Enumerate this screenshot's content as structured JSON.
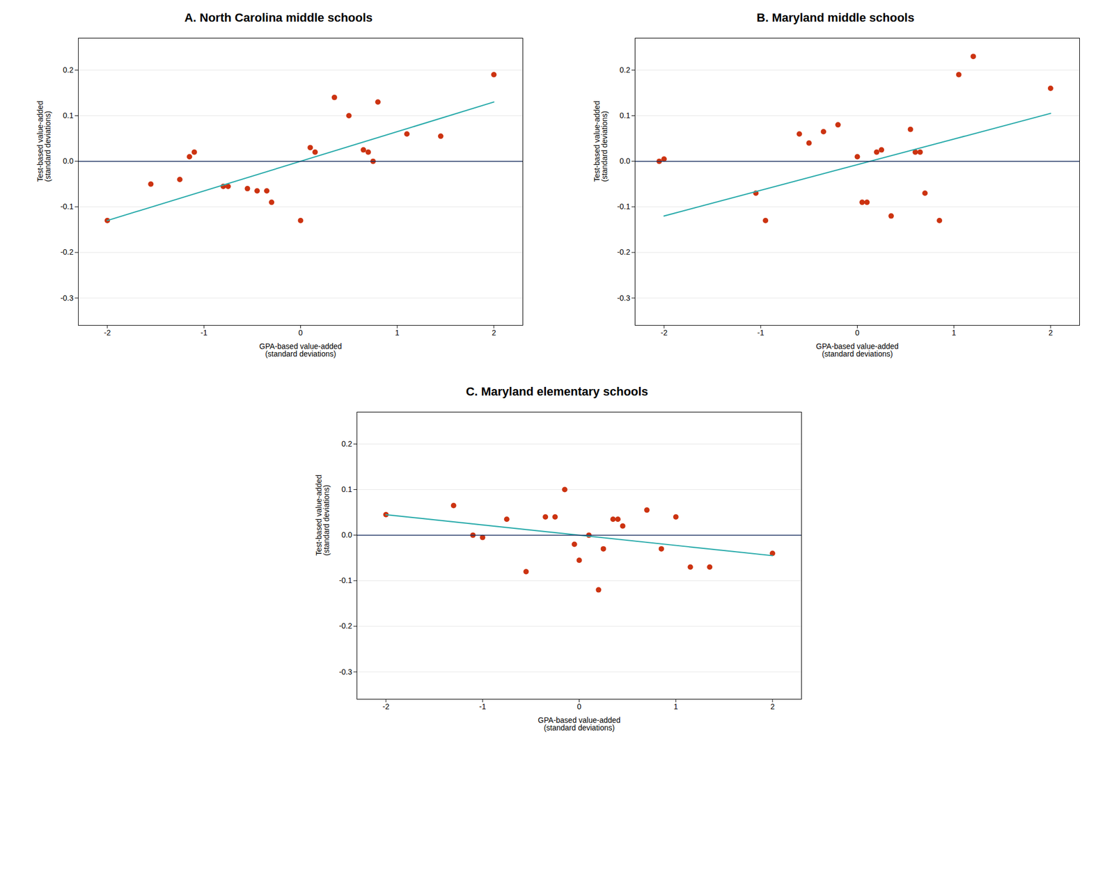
{
  "chart_data": [
    {
      "type": "scatter",
      "title": "A. North Carolina middle schools",
      "xlabel": "GPA-based value-added\n(standard deviations)",
      "ylabel": "Test-based value-added\n(standard deviations)",
      "xlim": [
        -2.3,
        2.3
      ],
      "ylim": [
        -0.36,
        0.27
      ],
      "xticks": [
        -2,
        -1,
        0,
        1,
        2
      ],
      "yticks": [
        -0.3,
        -0.2,
        -0.1,
        {
          "value": 0.0,
          "label": "0.0"
        },
        0.1,
        0.2
      ],
      "grid": "y",
      "series": [
        {
          "type": "scatter",
          "color": "#cc3311",
          "x": [
            -2.0,
            -1.55,
            -1.25,
            -1.15,
            -1.1,
            -0.8,
            -0.75,
            -0.55,
            -0.45,
            -0.35,
            -0.3,
            0.0,
            0.1,
            0.15,
            0.35,
            0.5,
            0.65,
            0.7,
            0.75,
            0.8,
            1.1,
            1.45,
            2.0
          ],
          "values": [
            -0.13,
            -0.05,
            -0.04,
            0.01,
            0.02,
            -0.055,
            -0.055,
            -0.06,
            -0.065,
            -0.065,
            -0.09,
            -0.13,
            0.03,
            0.02,
            0.14,
            0.1,
            0.025,
            0.02,
            0.0,
            0.13,
            0.06,
            0.055,
            0.19
          ]
        },
        {
          "type": "line",
          "color": "#2aabab",
          "x": [
            -2.0,
            2.0
          ],
          "values": [
            -0.13,
            0.13
          ]
        },
        {
          "type": "hline",
          "color": "#1a3060",
          "values": [
            0
          ]
        }
      ]
    },
    {
      "type": "scatter",
      "title": "B. Maryland middle schools",
      "xlabel": "GPA-based value-added\n(standard deviations)",
      "ylabel": "Test-based value-added\n(standard deviations)",
      "xlim": [
        -2.3,
        2.3
      ],
      "ylim": [
        -0.36,
        0.27
      ],
      "xticks": [
        -2,
        -1,
        0,
        1,
        2
      ],
      "yticks": [
        -0.3,
        -0.2,
        -0.1,
        {
          "value": 0.0,
          "label": "0.0"
        },
        0.1,
        0.2
      ],
      "grid": "y",
      "series": [
        {
          "type": "scatter",
          "color": "#cc3311",
          "x": [
            -2.05,
            -2.0,
            -1.05,
            -0.95,
            -0.6,
            -0.5,
            -0.35,
            -0.2,
            0.0,
            0.05,
            0.1,
            0.2,
            0.25,
            0.35,
            0.55,
            0.6,
            0.65,
            0.7,
            0.85,
            1.05,
            1.2,
            2.0
          ],
          "values": [
            0.0,
            0.005,
            -0.07,
            -0.13,
            0.06,
            0.04,
            0.065,
            0.08,
            0.01,
            -0.09,
            -0.09,
            0.02,
            0.025,
            -0.12,
            0.07,
            0.02,
            0.02,
            -0.07,
            -0.13,
            0.19,
            0.23,
            0.16
          ]
        },
        {
          "type": "line",
          "color": "#2aabab",
          "x": [
            -2.0,
            2.0
          ],
          "values": [
            -0.12,
            0.105
          ]
        },
        {
          "type": "hline",
          "color": "#1a3060",
          "values": [
            0
          ]
        }
      ]
    },
    {
      "type": "scatter",
      "title": "C. Maryland elementary schools",
      "xlabel": "GPA-based value-added\n(standard deviations)",
      "ylabel": "Test-based value-added\n(standard deviations)",
      "xlim": [
        -2.3,
        2.3
      ],
      "ylim": [
        -0.36,
        0.27
      ],
      "xticks": [
        -2,
        -1,
        0,
        1,
        2
      ],
      "yticks": [
        -0.3,
        -0.2,
        -0.1,
        {
          "value": 0.0,
          "label": "0.0"
        },
        0.1,
        0.2
      ],
      "grid": "y",
      "series": [
        {
          "type": "scatter",
          "color": "#cc3311",
          "x": [
            -2.0,
            -1.3,
            -1.1,
            -1.0,
            -0.75,
            -0.55,
            -0.35,
            -0.25,
            -0.15,
            -0.05,
            0.0,
            0.1,
            0.2,
            0.25,
            0.35,
            0.4,
            0.45,
            0.7,
            0.85,
            1.0,
            1.15,
            1.35,
            2.0
          ],
          "values": [
            0.045,
            0.065,
            0.0,
            -0.005,
            0.035,
            -0.08,
            0.04,
            0.04,
            0.1,
            -0.02,
            -0.055,
            0.0,
            -0.12,
            -0.03,
            0.035,
            0.035,
            0.02,
            0.055,
            -0.03,
            0.04,
            -0.07,
            -0.07,
            -0.04
          ]
        },
        {
          "type": "line",
          "color": "#2aabab",
          "x": [
            -2.0,
            2.0
          ],
          "values": [
            0.045,
            -0.045
          ]
        },
        {
          "type": "hline",
          "color": "#1a3060",
          "values": [
            0
          ]
        }
      ]
    }
  ]
}
